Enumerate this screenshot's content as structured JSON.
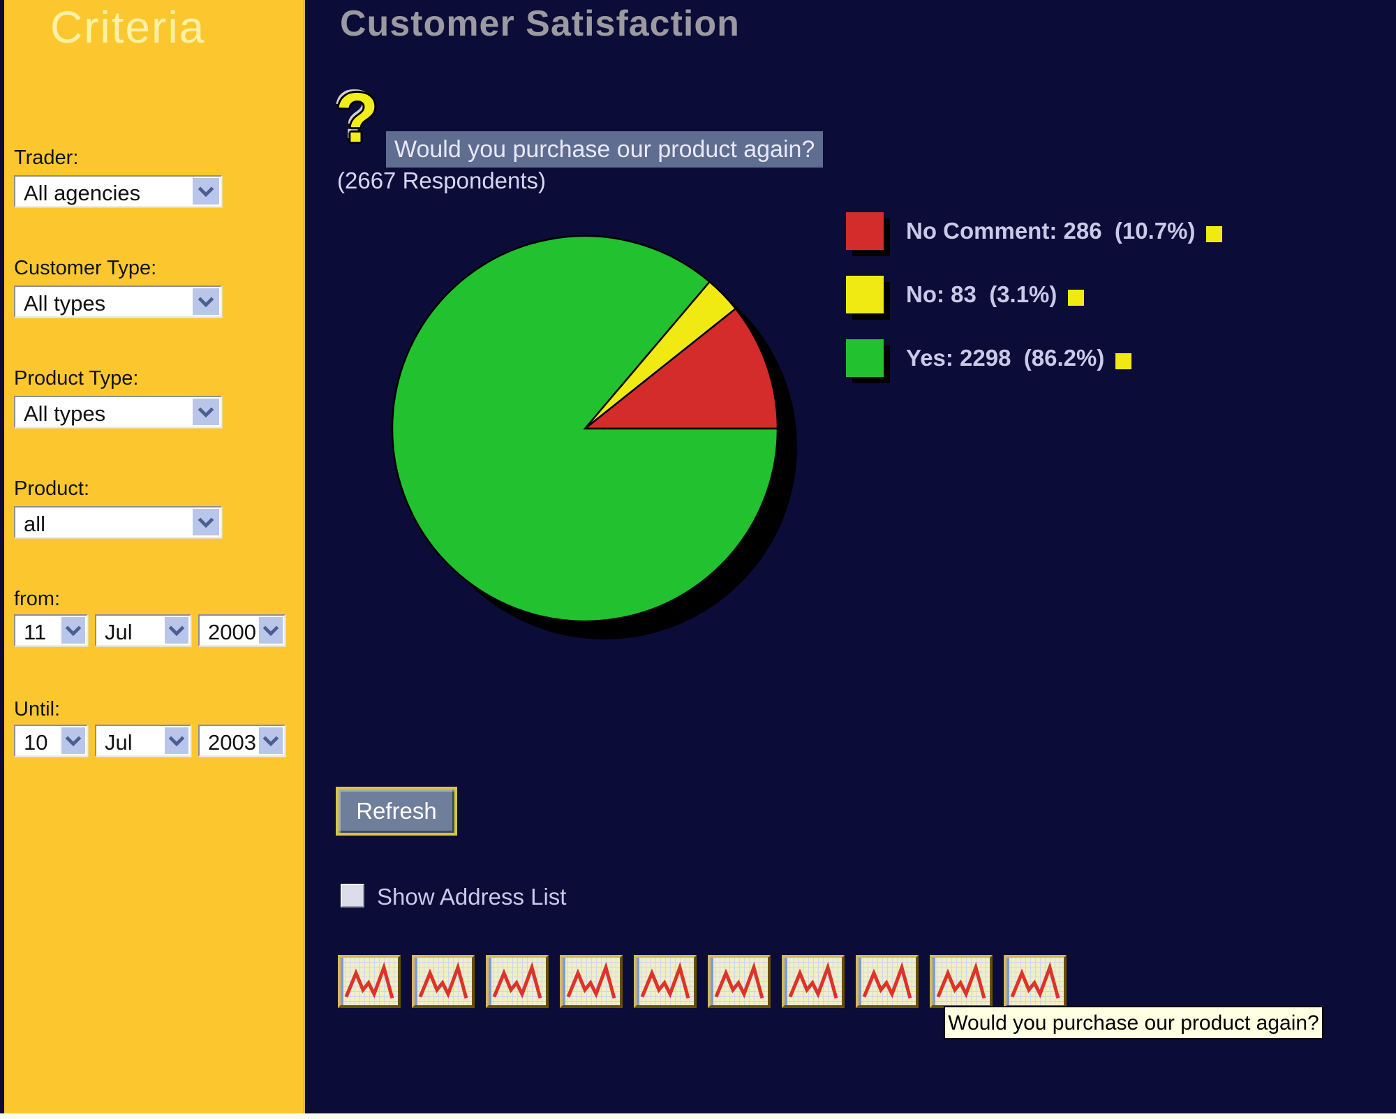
{
  "sidebar": {
    "title": "Criteria",
    "groups": [
      {
        "label": "Trader:",
        "value": "All agencies"
      },
      {
        "label": "Customer Type:",
        "value": "All types"
      },
      {
        "label": "Product Type:",
        "value": "All types"
      },
      {
        "label": "Product:",
        "value": "all"
      }
    ],
    "date_from": {
      "label": "from:",
      "day": "11",
      "month": "Jul",
      "year": "2000"
    },
    "date_until": {
      "label": "Until:",
      "day": "10",
      "month": "Jul",
      "year": "2003"
    }
  },
  "main": {
    "title": "Customer Satisfaction",
    "question_icon": "?",
    "question": "Would you purchase our product again?",
    "respondents": "(2667 Respondents)",
    "refresh_label": "Refresh",
    "checkbox_label": "Show Address List",
    "checkbox_checked": false,
    "thumbnails_count": 10,
    "tooltip": "Would you purchase our product again?"
  },
  "chart_data": {
    "type": "pie",
    "title": "Would you purchase our product again?",
    "respondents_total": 2667,
    "start_angle_deg": 0,
    "direction": "counterclockwise",
    "legend_position": "right",
    "slices": [
      {
        "label": "No Comment",
        "value": 286,
        "pct": 10.7,
        "color": "#d42b2b"
      },
      {
        "label": "No",
        "value": 83,
        "pct": 3.1,
        "color": "#f0ea12"
      },
      {
        "label": "Yes",
        "value": 2298,
        "pct": 86.2,
        "color": "#22c12f"
      }
    ]
  },
  "colors": {
    "sidebar_bg": "#fcc72e",
    "main_bg": "#0c0c38",
    "title_gray": "#9a9aa0",
    "question_highlight_bg": "#5e6d90",
    "light_text": "#d6d6f2",
    "legend_text": "#c9c9e8",
    "legend_marker_yellow": "#f0ea12",
    "pie_shadow": "#000000",
    "refresh_face": "#6f7e9a",
    "refresh_border": "#d5c83e",
    "tooltip_bg": "#ffffe1",
    "thumb_face": "#f1efc4",
    "thumb_line_red": "#dd3328"
  }
}
